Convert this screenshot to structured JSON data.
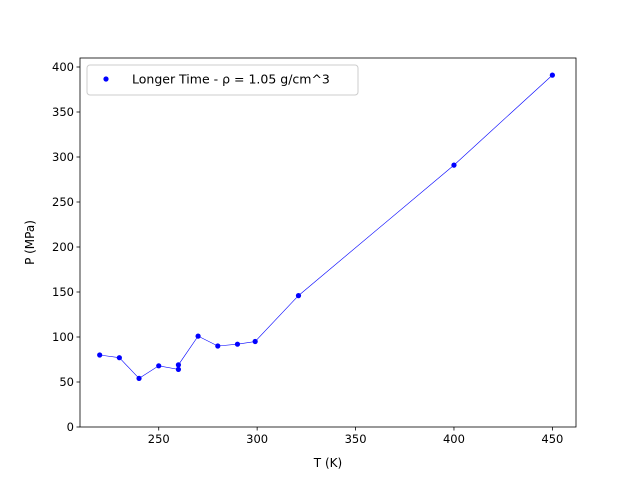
{
  "chart_data": {
    "type": "line",
    "xlabel": "T (K)",
    "ylabel": "P (MPa)",
    "xlim": [
      210,
      462
    ],
    "ylim": [
      0,
      410
    ],
    "x_ticks": [
      250,
      300,
      350,
      400,
      450
    ],
    "y_ticks": [
      0,
      50,
      100,
      150,
      200,
      250,
      300,
      350,
      400
    ],
    "grid": false,
    "legend_position": "top-left",
    "series": [
      {
        "name": "Longer Time - ρ = 1.05 g/cm^3",
        "color": "#0000ff",
        "marker": "circle",
        "points": [
          {
            "x": 220,
            "y": 80
          },
          {
            "x": 230,
            "y": 77
          },
          {
            "x": 240,
            "y": 54
          },
          {
            "x": 250,
            "y": 68
          },
          {
            "x": 260,
            "y": 64
          },
          {
            "x": 260,
            "y": 69
          },
          {
            "x": 270,
            "y": 101
          },
          {
            "x": 280,
            "y": 90
          },
          {
            "x": 290,
            "y": 92
          },
          {
            "x": 299,
            "y": 95
          },
          {
            "x": 321,
            "y": 146
          },
          {
            "x": 400,
            "y": 291
          },
          {
            "x": 450,
            "y": 391
          }
        ]
      }
    ]
  }
}
